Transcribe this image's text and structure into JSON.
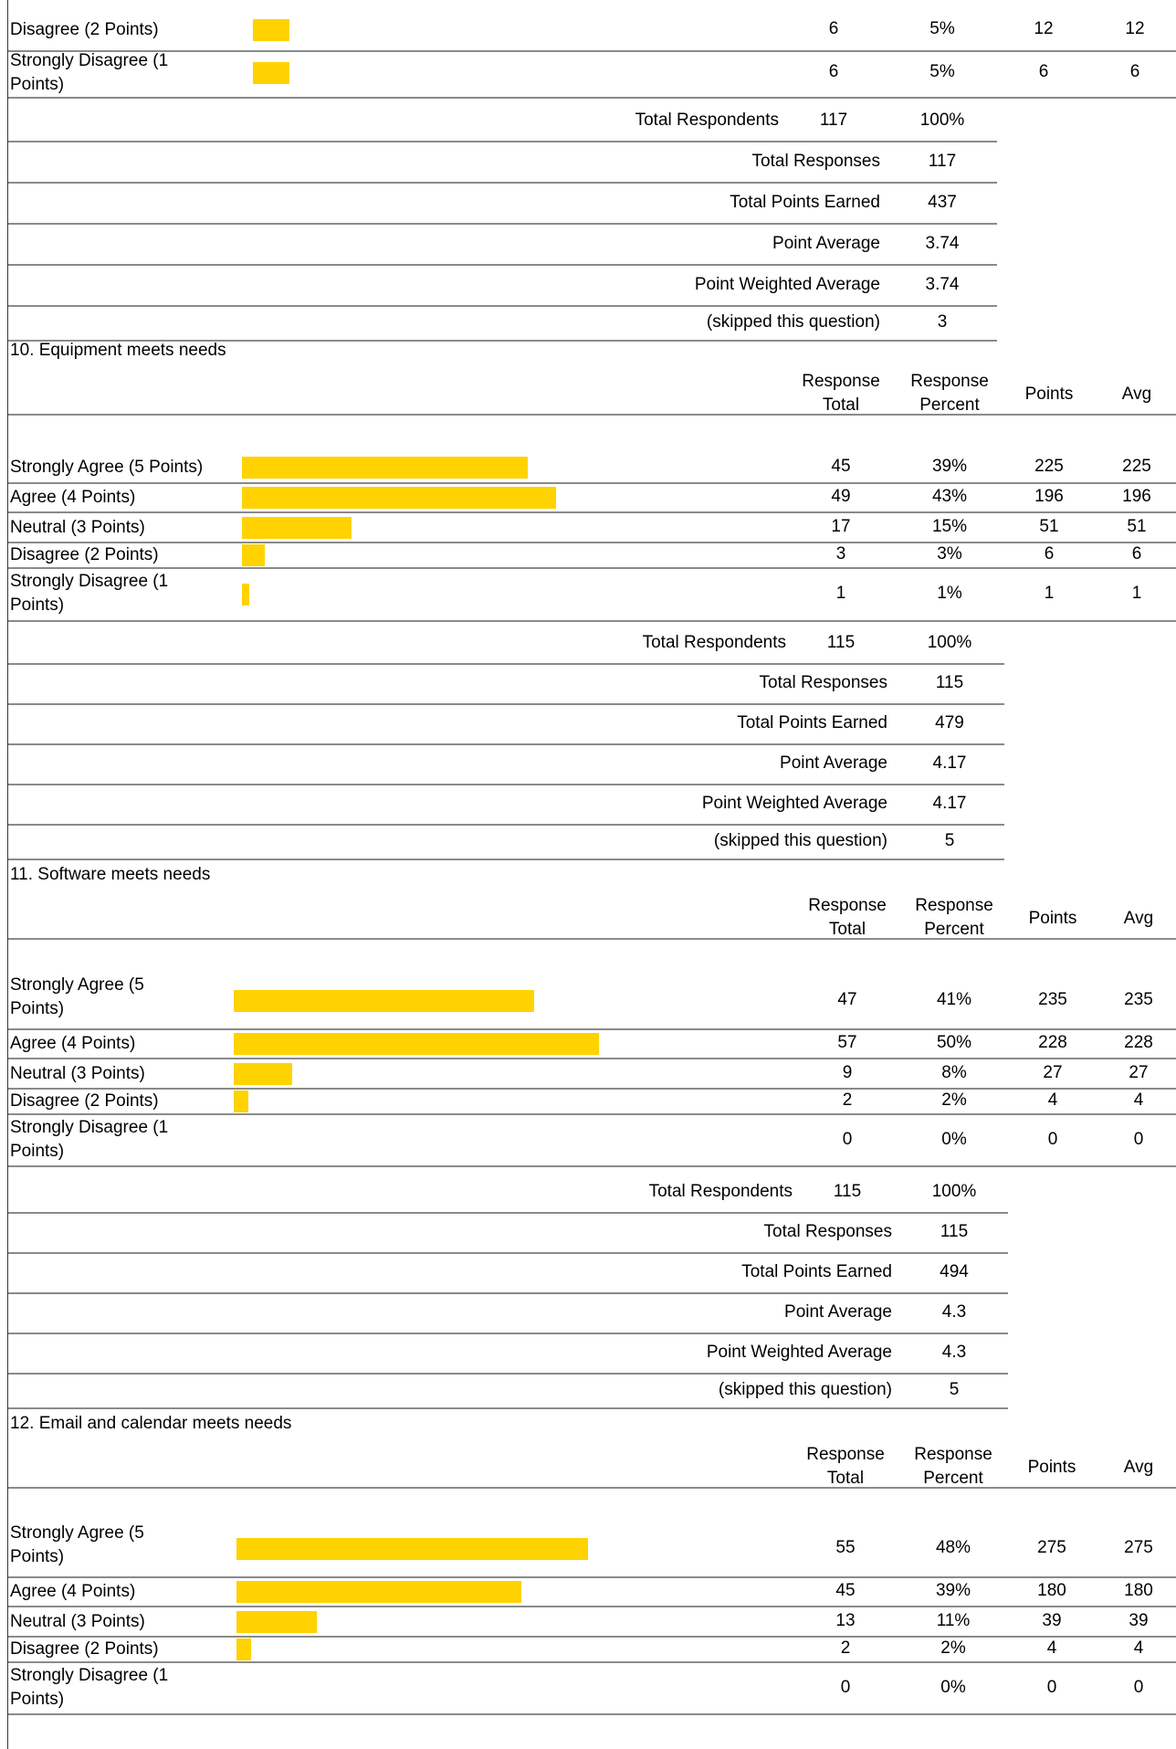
{
  "colors": {
    "bar": "#FFD200",
    "rule": "#8a8a8a"
  },
  "headers": {
    "total": [
      "Response",
      "Total"
    ],
    "percent": [
      "Response",
      "Percent"
    ],
    "points": "Points",
    "avg": "Avg"
  },
  "sections": [
    {
      "title": "",
      "rows": [
        {
          "label": [
            "Disagree (2 Points)"
          ],
          "count": "6",
          "percent": "5%",
          "points": "12",
          "avg": "12",
          "fraction": 0.051
        },
        {
          "label": [
            "Strongly Disagree (1",
            "Points)"
          ],
          "count": "6",
          "percent": "5%",
          "points": "6",
          "avg": "6",
          "fraction": 0.051
        }
      ],
      "summary": {
        "respondents_label": "Total Respondents",
        "respondents": "117",
        "respondents_pct": "100%",
        "responses_label": "Total Responses",
        "responses": "117",
        "points_label": "Total Points Earned",
        "points": "437",
        "average_label": "Point Average",
        "average": "3.74",
        "weighted_label": "Point Weighted Average",
        "weighted": "3.74",
        "skipped_label": "(skipped this question)",
        "skipped": "3"
      }
    },
    {
      "title": "10.  Equipment meets needs",
      "rows": [
        {
          "label": [
            "Strongly Agree (5 Points)"
          ],
          "count": "45",
          "percent": "39%",
          "points": "225",
          "avg": "225",
          "fraction": 0.39
        },
        {
          "label": [
            "Agree (4 Points)"
          ],
          "count": "49",
          "percent": "43%",
          "points": "196",
          "avg": "196",
          "fraction": 0.43
        },
        {
          "label": [
            "Neutral (3 Points)"
          ],
          "count": "17",
          "percent": "15%",
          "points": "51",
          "avg": "51",
          "fraction": 0.15
        },
        {
          "label": [
            "Disagree (2 Points)"
          ],
          "count": "3",
          "percent": "3%",
          "points": "6",
          "avg": "6",
          "fraction": 0.03
        },
        {
          "label": [
            "Strongly Disagree (1",
            "Points)"
          ],
          "count": "1",
          "percent": "1%",
          "points": "1",
          "avg": "1",
          "fraction": 0.01
        }
      ],
      "summary": {
        "respondents_label": "Total Respondents",
        "respondents": "115",
        "respondents_pct": "100%",
        "responses_label": "Total Responses",
        "responses": "115",
        "points_label": "Total Points Earned",
        "points": "479",
        "average_label": "Point Average",
        "average": "4.17",
        "weighted_label": "Point Weighted Average",
        "weighted": "4.17",
        "skipped_label": "(skipped this question)",
        "skipped": "5"
      }
    },
    {
      "title": "11.  Software meets needs",
      "rows": [
        {
          "label": [
            "Strongly Agree (5",
            "Points)"
          ],
          "count": "47",
          "percent": "41%",
          "points": "235",
          "avg": "235",
          "fraction": 0.41
        },
        {
          "label": [
            "Agree (4 Points)"
          ],
          "count": "57",
          "percent": "50%",
          "points": "228",
          "avg": "228",
          "fraction": 0.5
        },
        {
          "label": [
            "Neutral (3 Points)"
          ],
          "count": "9",
          "percent": "8%",
          "points": "27",
          "avg": "27",
          "fraction": 0.08
        },
        {
          "label": [
            "Disagree (2 Points)"
          ],
          "count": "2",
          "percent": "2%",
          "points": "4",
          "avg": "4",
          "fraction": 0.02
        },
        {
          "label": [
            "Strongly Disagree (1",
            "Points)"
          ],
          "count": "0",
          "percent": "0%",
          "points": "0",
          "avg": "0",
          "fraction": 0
        }
      ],
      "summary": {
        "respondents_label": "Total Respondents",
        "respondents": "115",
        "respondents_pct": "100%",
        "responses_label": "Total Responses",
        "responses": "115",
        "points_label": "Total Points Earned",
        "points": "494",
        "average_label": "Point Average",
        "average": "4.3",
        "weighted_label": "Point Weighted Average",
        "weighted": "4.3",
        "skipped_label": "(skipped this question)",
        "skipped": "5"
      }
    },
    {
      "title": "12.  Email and calendar meets needs",
      "rows": [
        {
          "label": [
            "Strongly Agree (5",
            "Points)"
          ],
          "count": "55",
          "percent": "48%",
          "points": "275",
          "avg": "275",
          "fraction": 0.48
        },
        {
          "label": [
            "Agree (4 Points)"
          ],
          "count": "45",
          "percent": "39%",
          "points": "180",
          "avg": "180",
          "fraction": 0.39
        },
        {
          "label": [
            "Neutral (3 Points)"
          ],
          "count": "13",
          "percent": "11%",
          "points": "39",
          "avg": "39",
          "fraction": 0.11
        },
        {
          "label": [
            "Disagree (2 Points)"
          ],
          "count": "2",
          "percent": "2%",
          "points": "4",
          "avg": "4",
          "fraction": 0.02
        },
        {
          "label": [
            "Strongly Disagree (1",
            "Points)"
          ],
          "count": "0",
          "percent": "0%",
          "points": "0",
          "avg": "0",
          "fraction": 0
        }
      ]
    }
  ]
}
